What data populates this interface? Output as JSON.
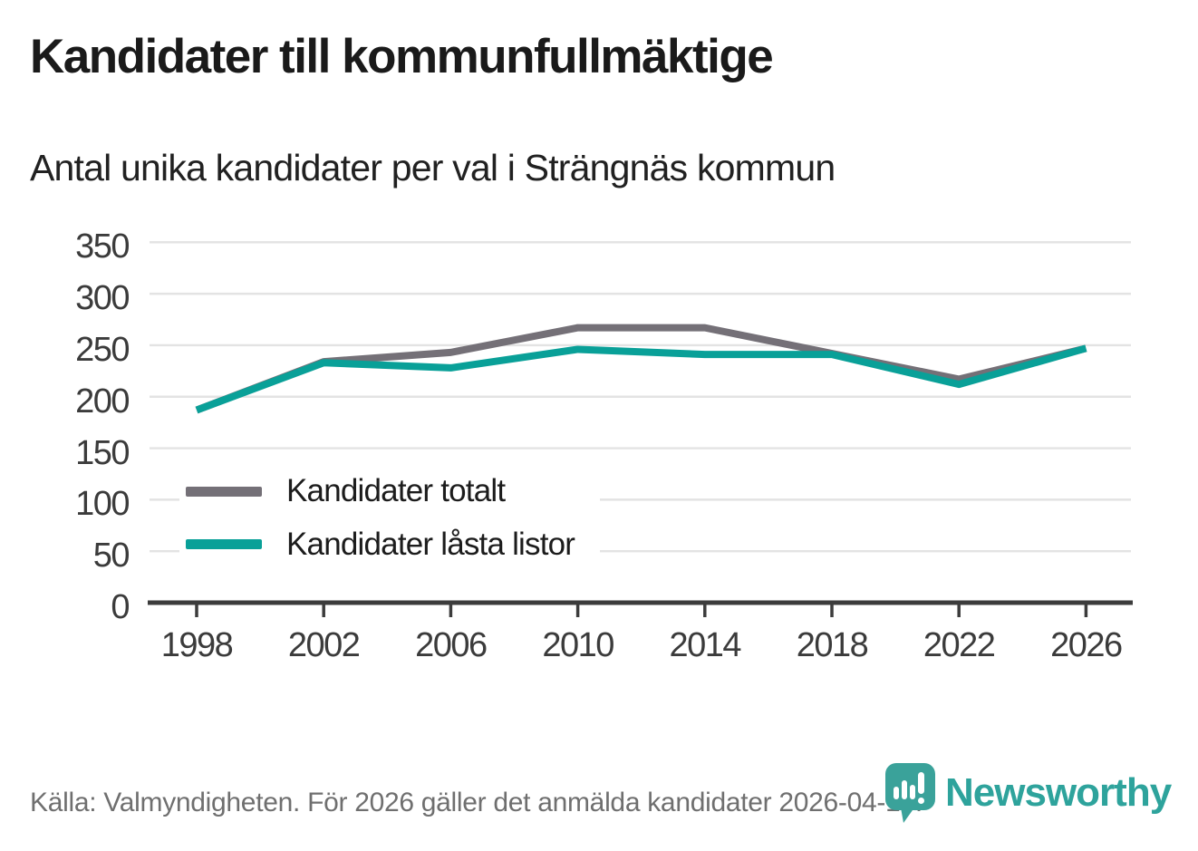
{
  "header": {
    "title": "Kandidater till kommunfullmäktige",
    "subtitle": "Antal unika kandidater per val i Strängnäs kommun"
  },
  "chart_data": {
    "type": "line",
    "title": "Kandidater till kommunfullmäktige",
    "subtitle": "Antal unika kandidater per val i Strängnäs kommun",
    "categories": [
      "1998",
      "2002",
      "2006",
      "2010",
      "2014",
      "2018",
      "2022",
      "2026"
    ],
    "series": [
      {
        "name": "Kandidater totalt",
        "color": "#747077",
        "values": [
          187,
          234,
          243,
          267,
          267,
          242,
          217,
          247
        ]
      },
      {
        "name": "Kandidater låsta listor",
        "color": "#09a098",
        "values": [
          187,
          233,
          228,
          246,
          241,
          241,
          212,
          247
        ]
      }
    ],
    "xlabel": "",
    "ylabel": "",
    "ylim": [
      0,
      350
    ],
    "y_ticks": [
      0,
      50,
      100,
      150,
      200,
      250,
      300,
      350
    ],
    "grid": "horizontal",
    "legend_position": "inside-left"
  },
  "footer": {
    "source": "Källa: Valmyndigheten. För 2026 gäller det anmälda kandidater 2026-04-10.",
    "brand": "Newsworthy"
  },
  "colors": {
    "line_gray": "#747077",
    "accent_teal": "#09a098",
    "brand_teal": "#2ea39c",
    "grid_gray": "#e3e3e3",
    "axis_dark": "#3c3c3c",
    "tick_label": "#3b3b3b",
    "footer_gray": "#6f6f6f"
  }
}
